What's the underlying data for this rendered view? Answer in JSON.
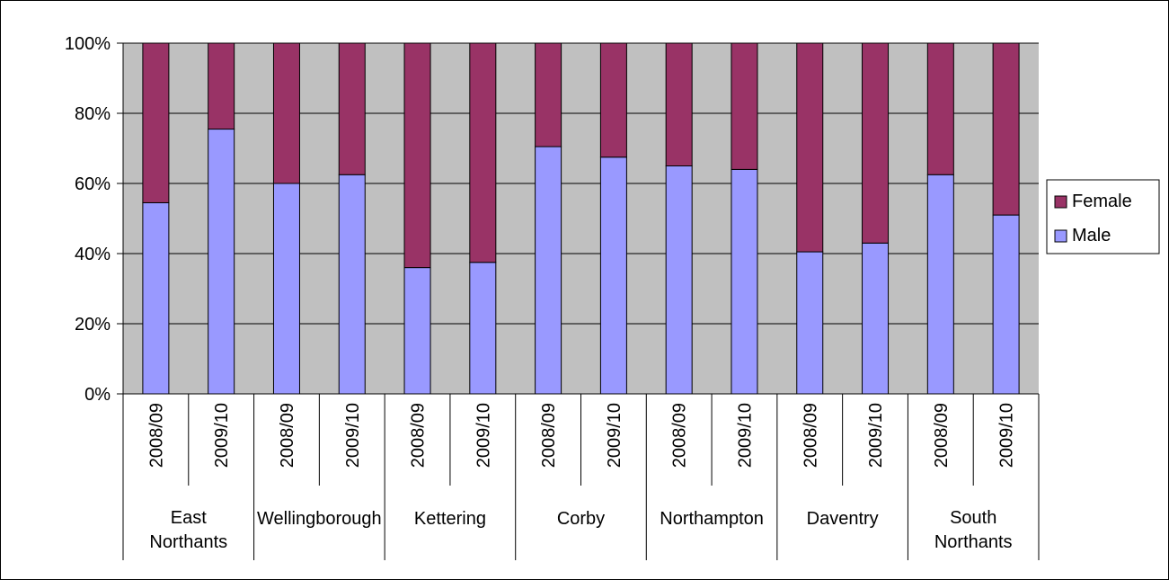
{
  "chart_data": {
    "type": "bar",
    "stacked": true,
    "percent": true,
    "categories": [
      {
        "group": "East Northants",
        "period": "2008/09"
      },
      {
        "group": "East Northants",
        "period": "2009/10"
      },
      {
        "group": "Wellingborough",
        "period": "2008/09"
      },
      {
        "group": "Wellingborough",
        "period": "2009/10"
      },
      {
        "group": "Kettering",
        "period": "2008/09"
      },
      {
        "group": "Kettering",
        "period": "2009/10"
      },
      {
        "group": "Corby",
        "period": "2008/09"
      },
      {
        "group": "Corby",
        "period": "2009/10"
      },
      {
        "group": "Northampton",
        "period": "2008/09"
      },
      {
        "group": "Northampton",
        "period": "2009/10"
      },
      {
        "group": "Daventry",
        "period": "2008/09"
      },
      {
        "group": "Daventry",
        "period": "2009/10"
      },
      {
        "group": "South Northants",
        "period": "2008/09"
      },
      {
        "group": "South Northants",
        "period": "2009/10"
      }
    ],
    "groups": [
      {
        "lines": [
          "East",
          "Northants"
        ]
      },
      {
        "lines": [
          "Wellingborough"
        ]
      },
      {
        "lines": [
          "Kettering"
        ]
      },
      {
        "lines": [
          "Corby"
        ]
      },
      {
        "lines": [
          "Northampton"
        ]
      },
      {
        "lines": [
          "Daventry"
        ]
      },
      {
        "lines": [
          "South",
          "Northants"
        ]
      }
    ],
    "series": [
      {
        "name": "Male",
        "color": "#9999ff",
        "values": [
          54.5,
          75.5,
          60,
          62.5,
          36,
          37.5,
          70.5,
          67.5,
          65,
          64,
          40.5,
          43,
          62.5,
          51
        ]
      },
      {
        "name": "Female",
        "color": "#993366",
        "values": [
          45.5,
          24.5,
          40,
          37.5,
          64,
          62.5,
          29.5,
          32.5,
          35,
          36,
          59.5,
          57,
          37.5,
          49
        ]
      }
    ],
    "ylim": [
      0,
      100
    ],
    "yticks": [
      "0%",
      "20%",
      "40%",
      "60%",
      "80%",
      "100%"
    ],
    "legend": {
      "position": "right",
      "order": [
        "Female",
        "Male"
      ]
    },
    "plot_background": "#c0c0c0",
    "grid": true
  }
}
